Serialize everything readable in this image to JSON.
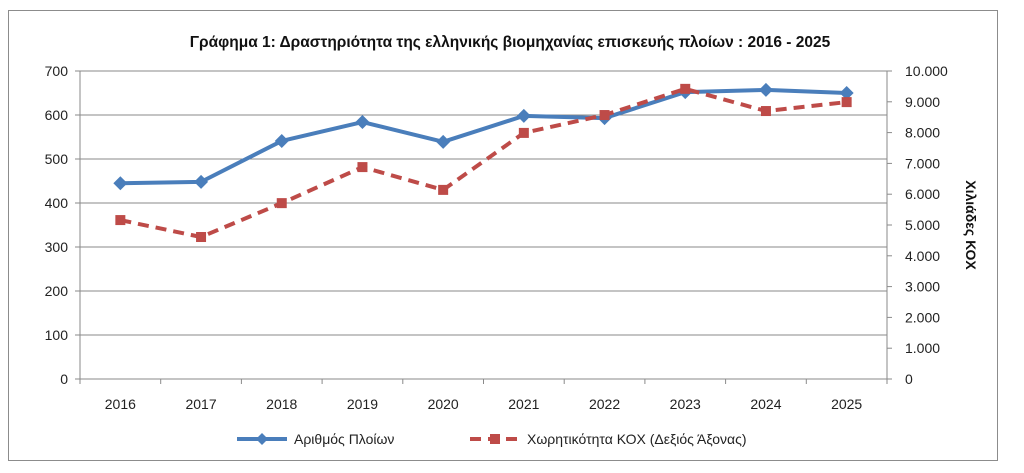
{
  "chart_data": {
    "type": "line",
    "title": "Γράφημα 1: Δραστηριότητα της ελληνικής βιομηχανίας επισκευής πλοίων : 2016 - 2025",
    "categories": [
      "2016",
      "2017",
      "2018",
      "2019",
      "2020",
      "2021",
      "2022",
      "2023",
      "2024",
      "2025"
    ],
    "y_left": {
      "label": "",
      "range": [
        0,
        700
      ],
      "ticks": [
        "0",
        "100",
        "200",
        "300",
        "400",
        "500",
        "600",
        "700"
      ]
    },
    "y_right": {
      "label": "Χιλιάδες ΚΟΧ",
      "range": [
        0,
        10000
      ],
      "ticks": [
        "0",
        "1.000",
        "2.000",
        "3.000",
        "4.000",
        "5.000",
        "6.000",
        "7.000",
        "8.000",
        "9.000",
        "10.000"
      ]
    },
    "grid": "horizontal",
    "legend_position": "bottom",
    "series": [
      {
        "name": "Αριθμός Πλοίων",
        "axis": "left",
        "color": "#4a7ebb",
        "style": "solid",
        "marker": "diamond",
        "values": [
          445,
          448,
          541,
          584,
          539,
          598,
          593,
          652,
          657,
          650
        ]
      },
      {
        "name": "Χωρητικότητα ΚΟΧ (Δεξιός Άξονας)",
        "axis": "right",
        "color": "#be4b48",
        "style": "dashed",
        "marker": "square",
        "values": [
          5160,
          4610,
          5710,
          6880,
          6140,
          7990,
          8570,
          9420,
          8700,
          8990
        ]
      }
    ]
  }
}
